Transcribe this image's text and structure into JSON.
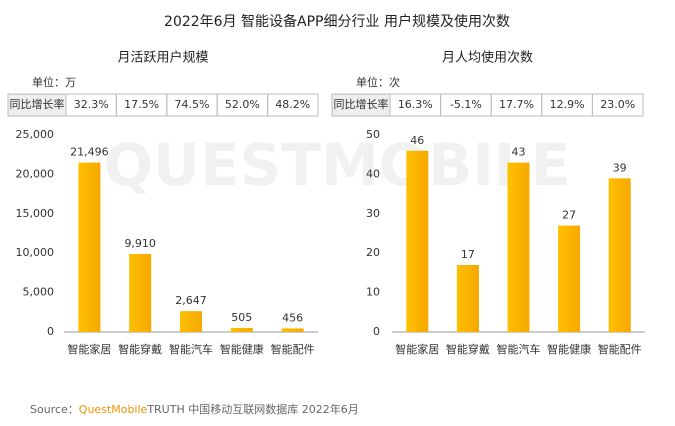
{
  "title": "2022年6月 智能设备APP细分行业 用户规模及使用次数",
  "watermark": "QUESTMOBILE",
  "source": {
    "label": "Source：",
    "brand": "QuestMobile",
    "text": "TRUTH 中国移动互联网数据库 2022年6月"
  },
  "chart_data": [
    {
      "type": "bar",
      "title": "月活跃用户规模",
      "unit": "单位：万",
      "growth": {
        "label": "同比增长率",
        "values": [
          32.3,
          17.5,
          74.5,
          52.0,
          48.2
        ],
        "value_labels": [
          "32.3%",
          "17.5%",
          "74.5%",
          "52.0%",
          "48.2%"
        ]
      },
      "categories": [
        "智能家居",
        "智能穿戴",
        "智能汽车",
        "智能健康",
        "智能配件"
      ],
      "values": [
        21496,
        9910,
        2647,
        505,
        456
      ],
      "value_labels": [
        "21,496",
        "9,910",
        "2,647",
        "505",
        "456"
      ],
      "color": "#ffc000",
      "ylim": [
        0,
        25000
      ],
      "yticks": [
        0,
        {
          "value": 5000,
          "label": "5,000"
        },
        {
          "value": 10000,
          "label": "10,000"
        },
        {
          "value": 15000,
          "label": "15,000"
        },
        {
          "value": 20000,
          "label": "20,000"
        },
        {
          "value": 25000,
          "label": "25,000"
        }
      ],
      "grid": false
    },
    {
      "type": "bar",
      "title": "月人均使用次数",
      "unit": "单位：次",
      "growth": {
        "label": "同比增长率",
        "values": [
          16.3,
          -5.1,
          17.7,
          12.9,
          23.0
        ],
        "value_labels": [
          "16.3%",
          "-5.1%",
          "17.7%",
          "12.9%",
          "23.0%"
        ]
      },
      "categories": [
        "智能家居",
        "智能穿戴",
        "智能汽车",
        "智能健康",
        "智能配件"
      ],
      "values": [
        46,
        17,
        43,
        27,
        39
      ],
      "color": "#ffc000",
      "ylim": [
        0,
        50
      ],
      "yticks": [
        0,
        10,
        20,
        30,
        40,
        50
      ],
      "grid": false
    }
  ]
}
